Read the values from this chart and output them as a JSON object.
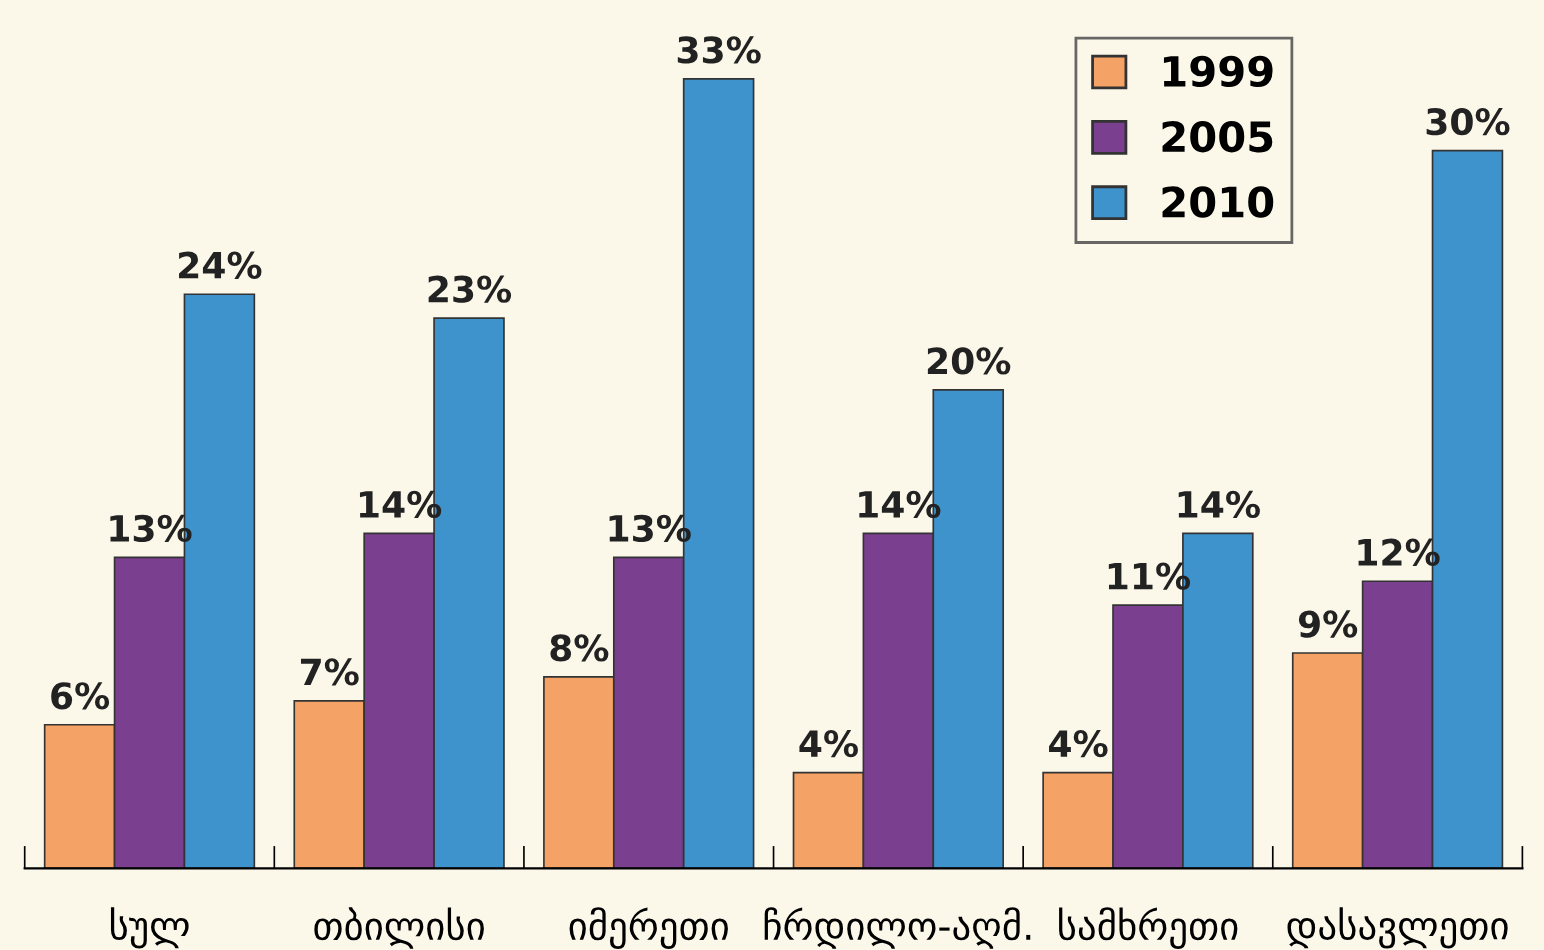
{
  "chart_data": {
    "type": "bar",
    "categories": [
      "სულ",
      "თბილისი",
      "იმერეთი",
      "ჩრდილო-აღმ.",
      "სამხრეთი",
      "დასავლეთი"
    ],
    "series": [
      {
        "name": "1999",
        "color": "#f5a266",
        "values": [
          6,
          7,
          8,
          4,
          4,
          9
        ],
        "value_labels": [
          "6%",
          "7%",
          "8%",
          "4%",
          "4%",
          "9%"
        ]
      },
      {
        "name": "2005",
        "color": "#7b3f90",
        "values": [
          13,
          14,
          13,
          14,
          11,
          12
        ],
        "value_labels": [
          "13%",
          "14%",
          "13%",
          "14%",
          "11%",
          "12%"
        ]
      },
      {
        "name": "2010",
        "color": "#3f93cc",
        "values": [
          24,
          23,
          33,
          20,
          14,
          30
        ],
        "value_labels": [
          "24%",
          "23%",
          "33%",
          "20%",
          "14%",
          "30%"
        ]
      }
    ],
    "legend": "top right",
    "grid": false
  }
}
